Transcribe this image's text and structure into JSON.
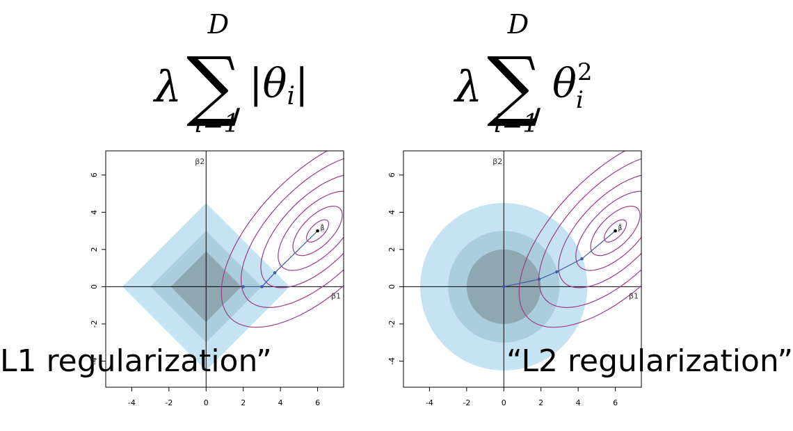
{
  "formulas": [
    {
      "coef": "λ",
      "sum": "∑",
      "upper": "D",
      "lower": "i=1",
      "term_open": "|θ",
      "term_sub": "i",
      "term_close": "|"
    },
    {
      "coef": "λ",
      "sum": "∑",
      "upper": "D",
      "lower": "i=1",
      "term_open": "θ",
      "term_sub": "i",
      "term_sup": "2"
    }
  ],
  "captions": {
    "left": "L1 regularization”",
    "right": "“L2 regularization”"
  },
  "colors": {
    "region_outer": "#c6e3f4",
    "region_mid": "#abcedf",
    "region_inner": "#8fa7b0",
    "contour": "#9c3a88",
    "path": "#3d56a6",
    "axis": "#000000"
  },
  "chart_data": [
    {
      "type": "scatter",
      "title": "",
      "xlabel": "β1",
      "ylabel": "β2",
      "xlim": [
        -5.4,
        7.4
      ],
      "ylim": [
        -5.4,
        7.3
      ],
      "xticks": [
        -4,
        -2,
        0,
        2,
        4,
        6
      ],
      "yticks": [
        -4,
        -2,
        0,
        2,
        4,
        6
      ],
      "constraint": "l1",
      "region_radii": [
        4.5,
        3.0,
        1.9
      ],
      "beta_hat": {
        "x": 6,
        "y": 3,
        "label": "β̂"
      },
      "contour_levels": [
        0.45,
        1.0,
        1.6,
        2.3,
        3.1,
        3.9
      ],
      "path_points": [
        [
          2.0,
          0.0
        ],
        [
          3.0,
          0.0
        ],
        [
          3.7,
          0.75
        ],
        [
          6.0,
          3.0
        ]
      ]
    },
    {
      "type": "scatter",
      "title": "",
      "xlabel": "β1",
      "ylabel": "β2",
      "xlim": [
        -5.4,
        7.4
      ],
      "ylim": [
        -5.4,
        7.3
      ],
      "xticks": [
        -4,
        -2,
        0,
        2,
        4,
        6
      ],
      "yticks": [
        -4,
        -2,
        0,
        2,
        4,
        6
      ],
      "constraint": "l2",
      "region_radii": [
        4.5,
        3.0,
        2.0
      ],
      "beta_hat": {
        "x": 6,
        "y": 3,
        "label": "β̂"
      },
      "contour_levels": [
        0.45,
        1.0,
        1.6,
        2.3,
        3.1,
        3.9
      ],
      "path_points": [
        [
          0.0,
          0.0
        ],
        [
          1.9,
          0.4
        ],
        [
          2.85,
          0.8
        ],
        [
          4.2,
          1.5
        ],
        [
          6.0,
          3.0
        ]
      ]
    }
  ]
}
